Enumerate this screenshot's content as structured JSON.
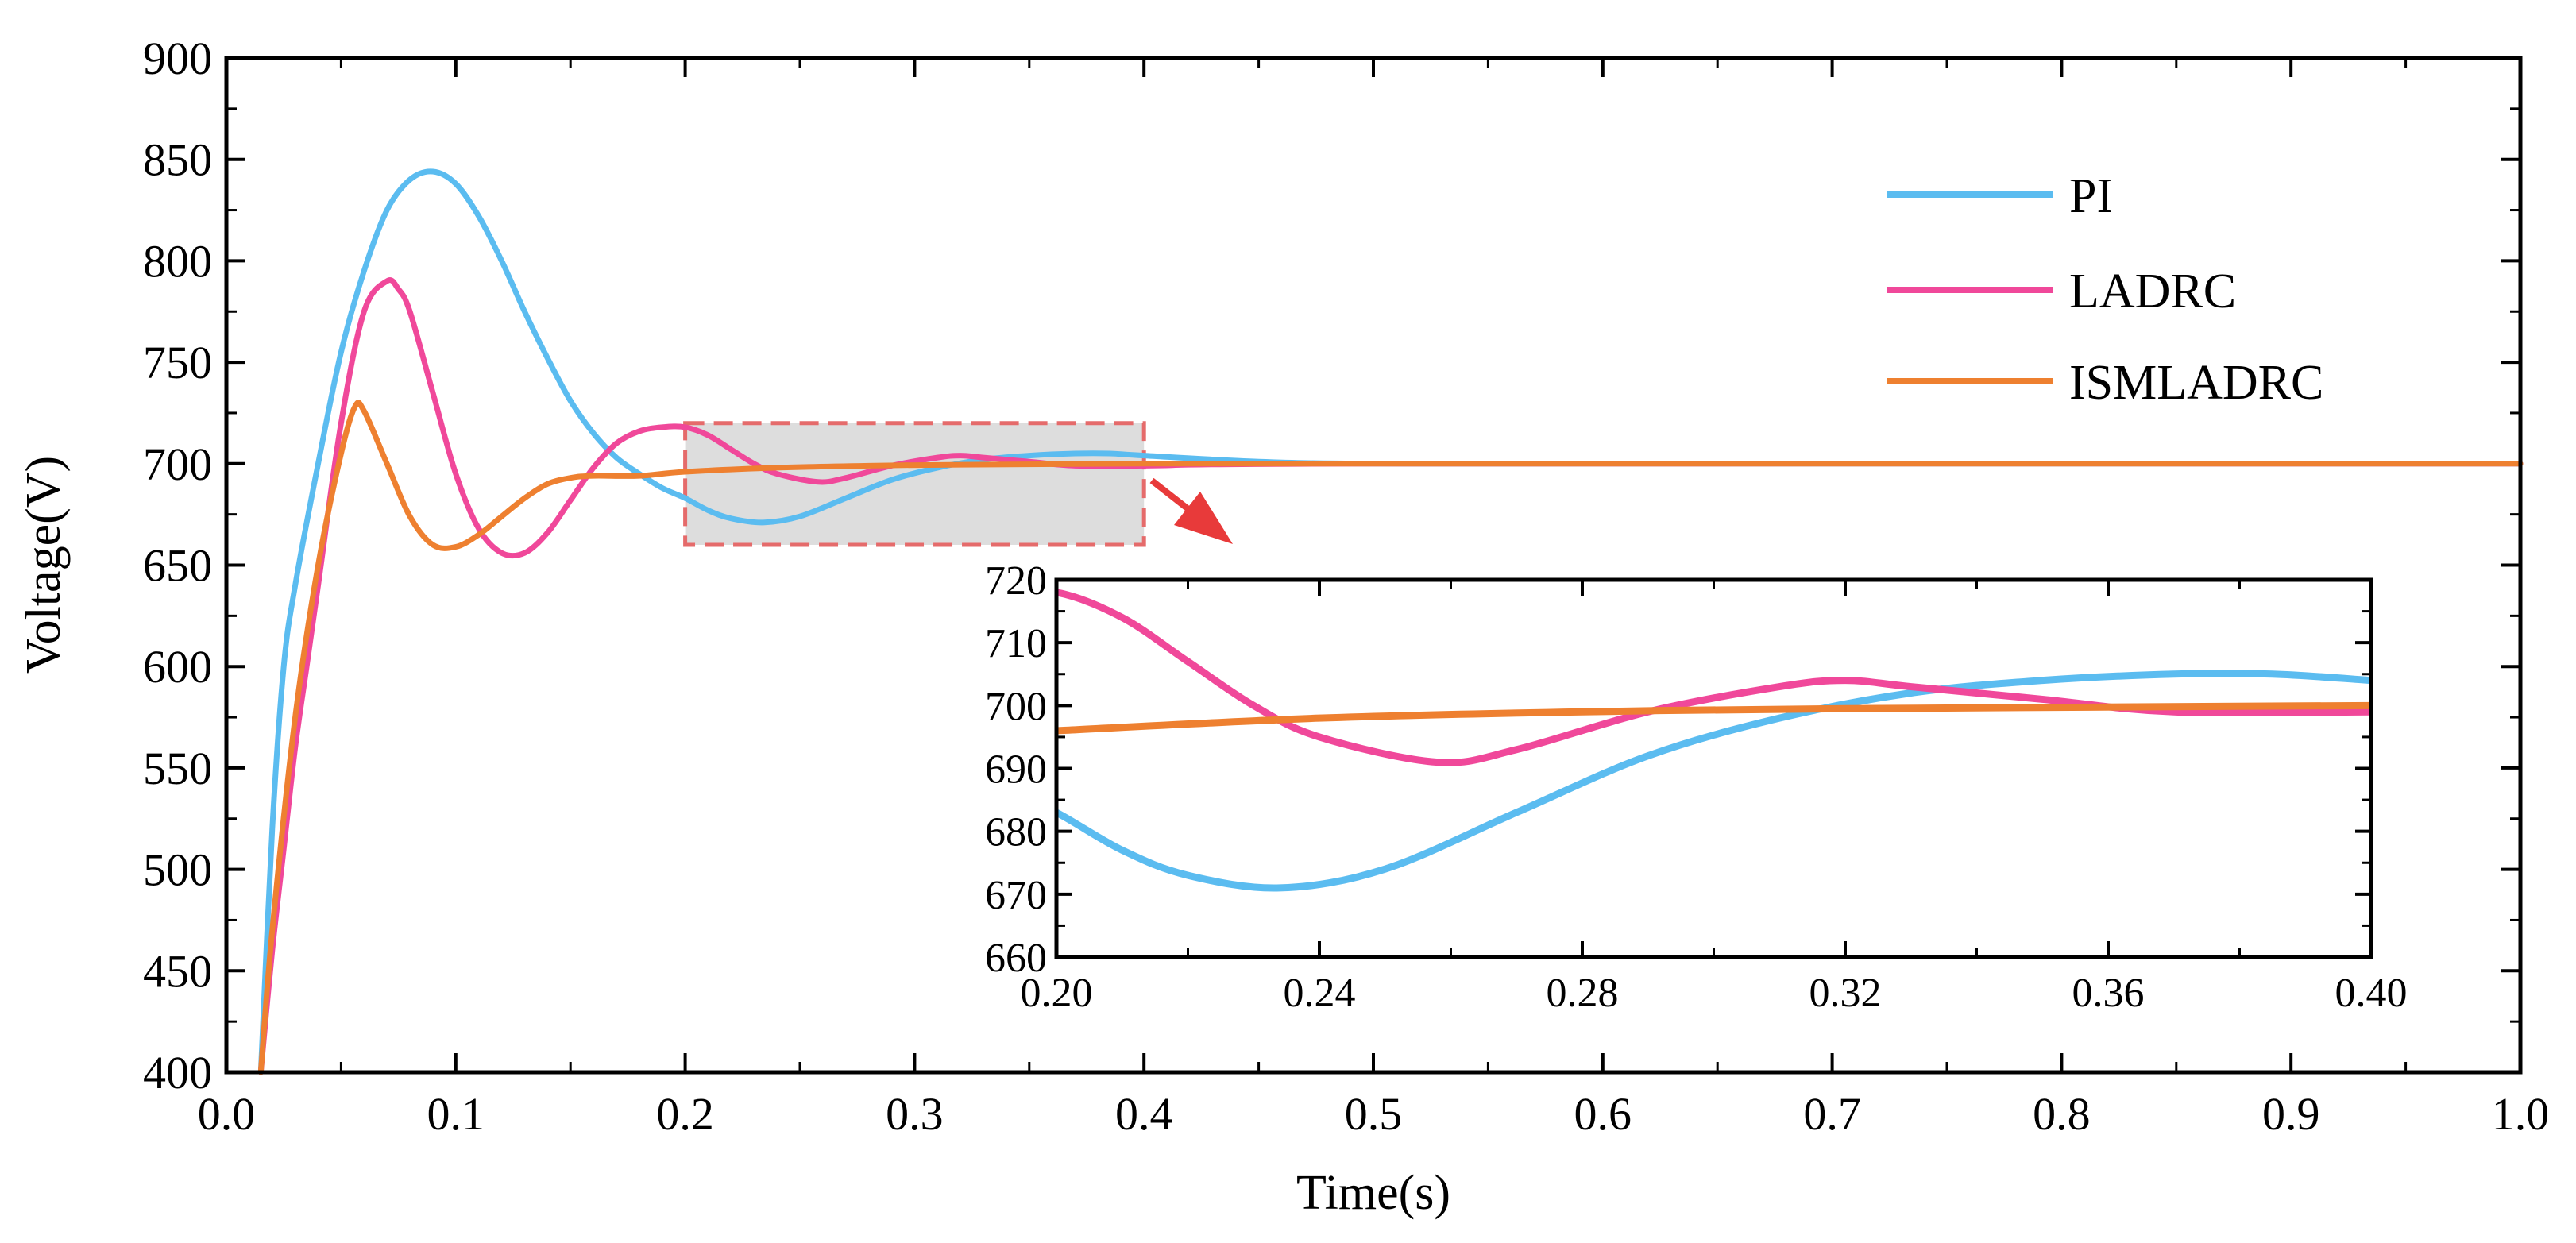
{
  "chart_data": {
    "type": "line",
    "title": "",
    "xlabel": "Time(s)",
    "ylabel": "Voltage(V)",
    "xlim": [
      0.0,
      1.0
    ],
    "ylim": [
      400,
      900
    ],
    "x_ticks": [
      "0.0",
      "0.1",
      "0.2",
      "0.3",
      "0.4",
      "0.5",
      "0.6",
      "0.7",
      "0.8",
      "0.9",
      "1.0"
    ],
    "y_ticks": [
      "400",
      "450",
      "500",
      "550",
      "600",
      "650",
      "700",
      "750",
      "800",
      "850",
      "900"
    ],
    "legend_position": "top-right",
    "colors": {
      "PI": "#5bbcf0",
      "LADRC": "#f0489a",
      "ISMLADRC": "#ee8030",
      "highlight": "#e56b6b",
      "arrow": "#e83a3a"
    },
    "series": [
      {
        "name": "PI",
        "x": [
          0.015,
          0.02,
          0.025,
          0.03,
          0.04,
          0.05,
          0.06,
          0.07,
          0.08,
          0.09,
          0.1,
          0.11,
          0.12,
          0.13,
          0.14,
          0.15,
          0.16,
          0.17,
          0.18,
          0.19,
          0.2,
          0.21,
          0.22,
          0.234,
          0.25,
          0.27,
          0.29,
          0.31,
          0.33,
          0.35,
          0.37,
          0.385,
          0.4,
          0.45,
          0.5,
          0.6,
          0.7,
          1.0
        ],
        "y": [
          400,
          520,
          600,
          640,
          700,
          755,
          795,
          825,
          840,
          844,
          838,
          822,
          800,
          775,
          752,
          731,
          715,
          703,
          695,
          688,
          683,
          677,
          673,
          671,
          674,
          683,
          692,
          698,
          702,
          704,
          705,
          705,
          704,
          701,
          700,
          700,
          700,
          700
        ]
      },
      {
        "name": "LADRC",
        "x": [
          0.015,
          0.02,
          0.025,
          0.03,
          0.035,
          0.04,
          0.05,
          0.06,
          0.07,
          0.075,
          0.08,
          0.09,
          0.1,
          0.11,
          0.12,
          0.13,
          0.14,
          0.15,
          0.16,
          0.17,
          0.18,
          0.19,
          0.2,
          0.21,
          0.22,
          0.23,
          0.24,
          0.258,
          0.27,
          0.29,
          0.31,
          0.32,
          0.33,
          0.35,
          0.37,
          0.4,
          0.5,
          1.0
        ],
        "y": [
          400,
          460,
          510,
          560,
          600,
          640,
          720,
          775,
          790,
          786,
          775,
          735,
          695,
          668,
          656,
          656,
          666,
          682,
          698,
          710,
          716,
          718,
          718,
          714,
          707,
          700,
          695,
          691,
          693,
          699,
          703,
          704,
          703,
          701,
          699,
          699,
          700,
          700
        ]
      },
      {
        "name": "ISMLADRC",
        "x": [
          0.015,
          0.02,
          0.03,
          0.04,
          0.05,
          0.056,
          0.06,
          0.07,
          0.08,
          0.09,
          0.1,
          0.11,
          0.12,
          0.13,
          0.14,
          0.15,
          0.16,
          0.18,
          0.2,
          0.24,
          0.28,
          0.32,
          0.4,
          0.5,
          1.0
        ],
        "y": [
          400,
          470,
          575,
          650,
          705,
          728,
          726,
          700,
          674,
          660,
          659,
          665,
          674,
          683,
          690,
          693,
          694,
          694,
          696,
          698,
          699,
          699.5,
          700,
          700,
          700
        ]
      }
    ],
    "inset": {
      "xlim": [
        0.2,
        0.4
      ],
      "ylim": [
        660,
        720
      ],
      "x_ticks": [
        "0.20",
        "0.24",
        "0.28",
        "0.32",
        "0.36",
        "0.40"
      ],
      "y_ticks": [
        "660",
        "670",
        "680",
        "690",
        "700",
        "710",
        "720"
      ],
      "highlight_region": {
        "x": [
          0.2,
          0.4
        ],
        "y": [
          660,
          720
        ]
      }
    }
  }
}
